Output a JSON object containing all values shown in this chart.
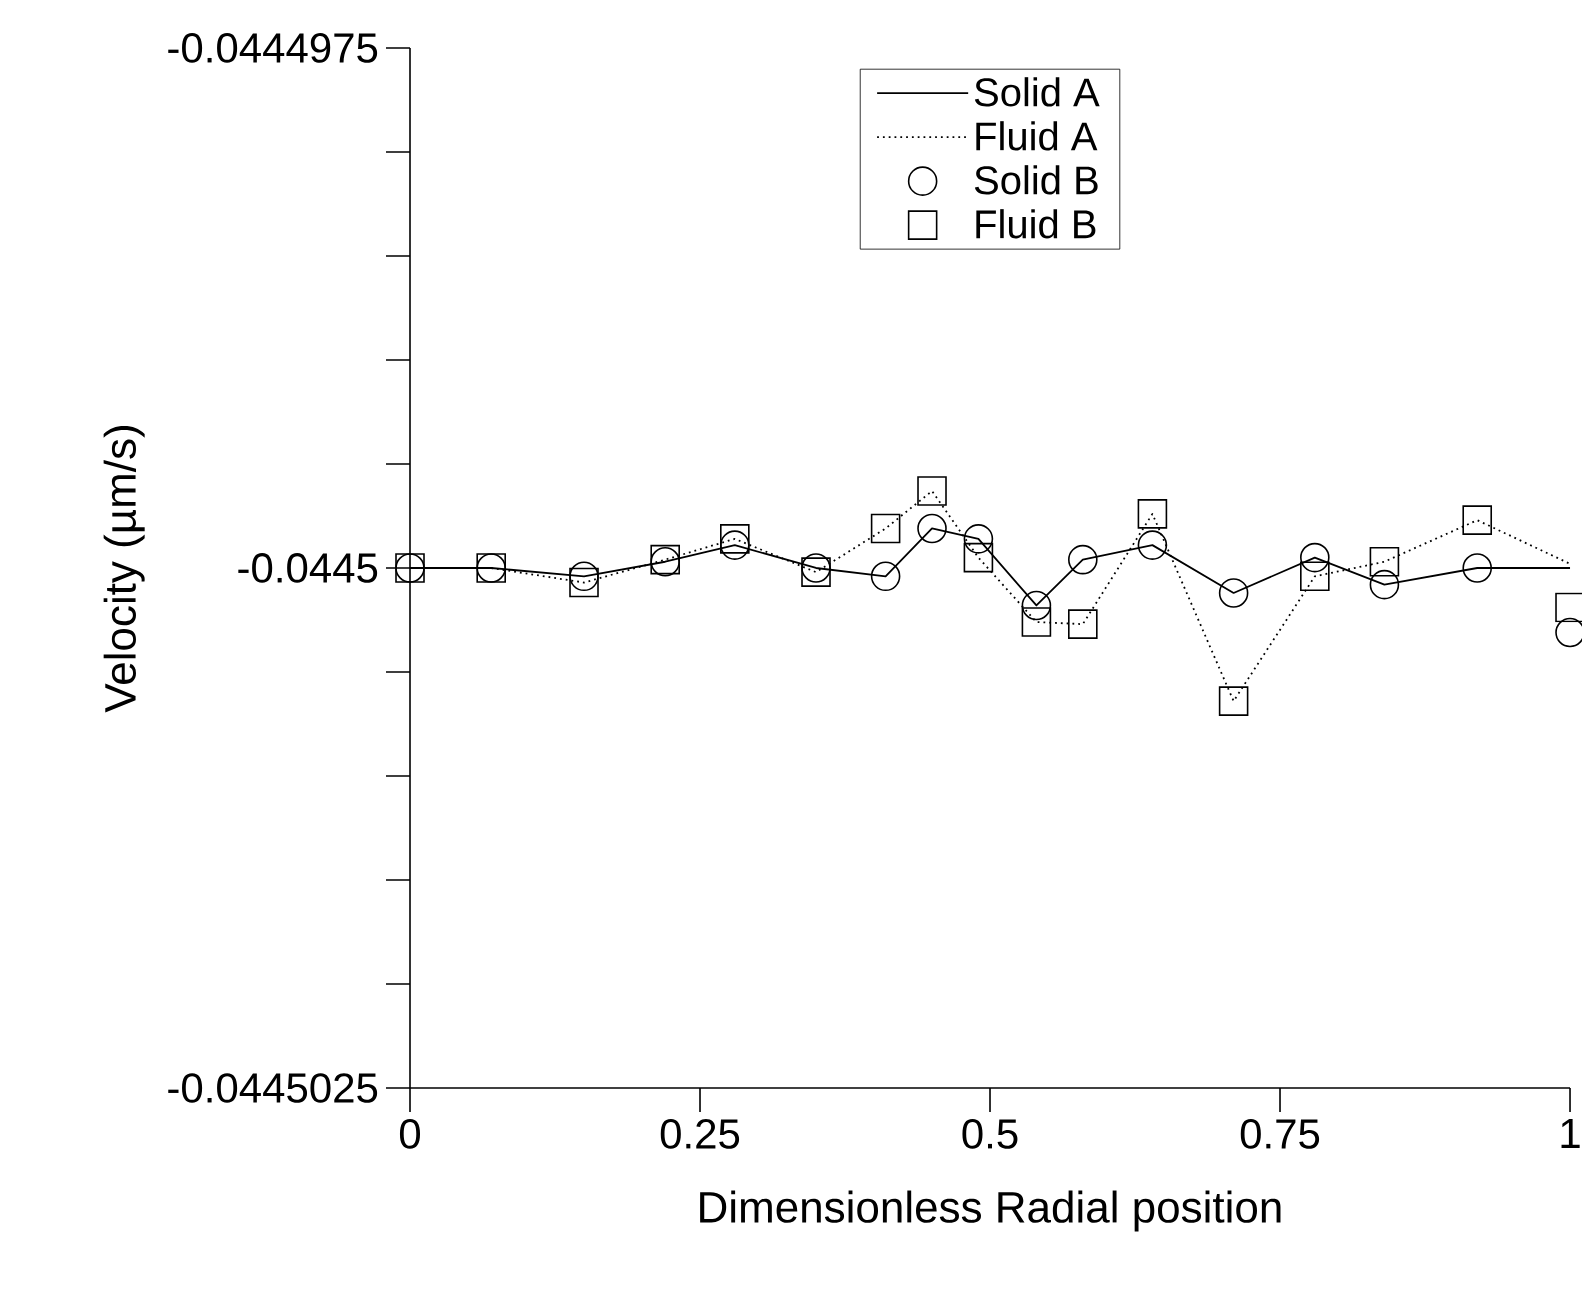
{
  "chart_data": {
    "type": "line",
    "xlabel": "Dimensionless Radial position",
    "ylabel": "Velocity (µm/s)",
    "x": [
      0,
      0.07,
      0.15,
      0.22,
      0.28,
      0.35,
      0.41,
      0.45,
      0.49,
      0.54,
      0.58,
      0.64,
      0.71,
      0.78,
      0.84,
      0.92,
      1
    ],
    "series": [
      {
        "name": "Solid A",
        "line_style": "solid",
        "marker": "none",
        "color": "#000000",
        "values": [
          -0.0445,
          -0.0445,
          -0.04450004,
          -0.04449997,
          -0.04449989,
          -0.0445,
          -0.04450004,
          -0.04449981,
          -0.04449986,
          -0.04450018,
          -0.04449996,
          -0.04449989,
          -0.04450012,
          -0.04449995,
          -0.04450008,
          -0.0445,
          -0.0445
        ]
      },
      {
        "name": "Fluid A",
        "line_style": "dotted",
        "marker": "none",
        "color": "#000000",
        "values": [
          -0.0445,
          -0.0445,
          -0.04450007,
          -0.04449996,
          -0.04449986,
          -0.04450002,
          -0.04449981,
          -0.04449963,
          -0.04449995,
          -0.04450026,
          -0.04450027,
          -0.04449974,
          -0.04450064,
          -0.04450004,
          -0.04449997,
          -0.04449977,
          -0.04449998
        ]
      },
      {
        "name": "Solid B",
        "type": "scatter",
        "marker": "circle",
        "color": "#000000",
        "values": [
          -0.0445,
          -0.0445,
          -0.04450004,
          -0.04449997,
          -0.04449989,
          -0.0445,
          -0.04450004,
          -0.04449981,
          -0.04449986,
          -0.04450018,
          -0.04449996,
          -0.04449989,
          -0.04450012,
          -0.04449995,
          -0.04450008,
          -0.0445,
          -0.04450031
        ]
      },
      {
        "name": "Fluid B",
        "type": "scatter",
        "marker": "square",
        "color": "#000000",
        "values": [
          -0.0445,
          -0.0445,
          -0.04450007,
          -0.04449996,
          -0.04449986,
          -0.04450002,
          -0.04449981,
          -0.04449963,
          -0.04449995,
          -0.04450026,
          -0.04450027,
          -0.04449974,
          -0.04450064,
          -0.04450004,
          -0.04449997,
          -0.04449977,
          -0.04450019
        ]
      }
    ],
    "xlim": [
      0,
      1
    ],
    "xticks": [
      0,
      0.25,
      0.5,
      0.75,
      1
    ],
    "ylim": [
      -0.0445025,
      -0.0444975
    ],
    "yticks": [
      -0.0445025,
      {
        "value": -0.044502,
        "label": null
      },
      {
        "value": -0.0445015,
        "label": null
      },
      {
        "value": -0.044501,
        "label": null
      },
      {
        "value": -0.0445005,
        "label": null
      },
      -0.0445,
      {
        "value": -0.0444995,
        "label": null
      },
      {
        "value": -0.044499,
        "label": null
      },
      {
        "value": -0.0444985,
        "label": null
      },
      {
        "value": -0.044498,
        "label": null
      },
      -0.0444975
    ],
    "grid": false,
    "legend": "top"
  }
}
